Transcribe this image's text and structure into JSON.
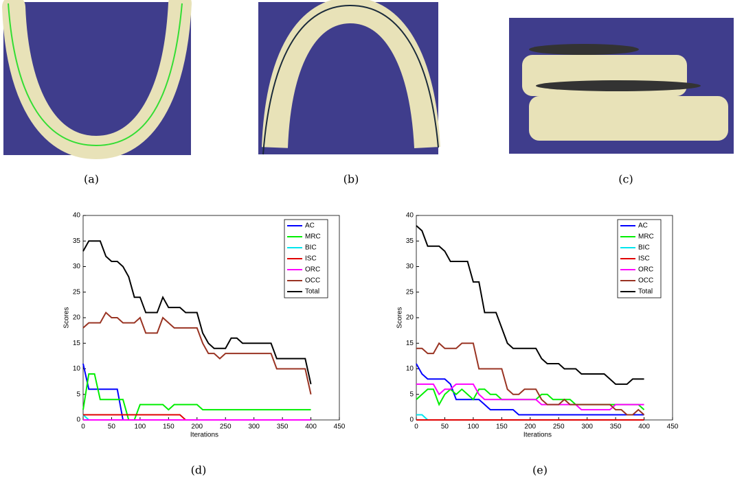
{
  "figure": {
    "captions": [
      "(a)",
      "(b)",
      "(c)",
      "(d)",
      "(e)"
    ]
  },
  "chart_data": [
    {
      "type": "line",
      "xlabel": "Iterations",
      "ylabel": "Scores",
      "xlim": [
        0,
        450
      ],
      "xticks": [
        0,
        50,
        100,
        150,
        200,
        250,
        300,
        350,
        400,
        450
      ],
      "ylim": [
        0,
        40
      ],
      "yticks": [
        0,
        5,
        10,
        15,
        20,
        25,
        30,
        35,
        40
      ],
      "legend": "upper right",
      "x": [
        0,
        10,
        20,
        30,
        40,
        50,
        60,
        70,
        80,
        90,
        100,
        110,
        120,
        130,
        140,
        150,
        160,
        170,
        180,
        190,
        200,
        210,
        220,
        230,
        240,
        250,
        260,
        270,
        280,
        290,
        300,
        310,
        320,
        330,
        340,
        350,
        360,
        370,
        380,
        390,
        400
      ],
      "series": [
        {
          "name": "AC",
          "color": "#0000ff",
          "values": [
            11,
            6,
            6,
            6,
            6,
            6,
            6,
            0,
            0,
            0,
            0,
            0,
            0,
            0,
            0,
            0,
            0,
            0,
            0,
            0,
            0,
            0,
            0,
            0,
            0,
            0,
            0,
            0,
            0,
            0,
            0,
            0,
            0,
            0,
            0,
            0,
            0,
            0,
            0,
            0,
            0
          ]
        },
        {
          "name": "MRC",
          "color": "#00ee00",
          "values": [
            2,
            9,
            9,
            4,
            4,
            4,
            4,
            4,
            0,
            0,
            3,
            3,
            3,
            3,
            3,
            2,
            3,
            3,
            3,
            3,
            3,
            2,
            2,
            2,
            2,
            2,
            2,
            2,
            2,
            2,
            2,
            2,
            2,
            2,
            2,
            2,
            2,
            2,
            2,
            2,
            2
          ]
        },
        {
          "name": "BIC",
          "color": "#00e5ee",
          "values": [
            1,
            0,
            0,
            0,
            0,
            0,
            0,
            0,
            0,
            0,
            0,
            0,
            0,
            0,
            0,
            0,
            0,
            0,
            0,
            0,
            0,
            0,
            0,
            0,
            0,
            0,
            0,
            0,
            0,
            0,
            0,
            0,
            0,
            0,
            0,
            0,
            0,
            0,
            0,
            0,
            0
          ]
        },
        {
          "name": "ISC",
          "color": "#e00000",
          "values": [
            1,
            1,
            1,
            1,
            1,
            1,
            1,
            1,
            1,
            1,
            1,
            1,
            1,
            1,
            1,
            1,
            1,
            1,
            0,
            0,
            0,
            0,
            0,
            0,
            0,
            0,
            0,
            0,
            0,
            0,
            0,
            0,
            0,
            0,
            0,
            0,
            0,
            0,
            0,
            0,
            0
          ]
        },
        {
          "name": "ORC",
          "color": "#ff00ff",
          "values": [
            0,
            0,
            0,
            0,
            0,
            0,
            0,
            0,
            0,
            0,
            0,
            0,
            0,
            0,
            0,
            0,
            0,
            0,
            0,
            0,
            0,
            0,
            0,
            0,
            0,
            0,
            0,
            0,
            0,
            0,
            0,
            0,
            0,
            0,
            0,
            0,
            0,
            0,
            0,
            0,
            0
          ]
        },
        {
          "name": "OCC",
          "color": "#993322",
          "values": [
            18,
            19,
            19,
            19,
            21,
            20,
            20,
            19,
            19,
            19,
            20,
            17,
            17,
            17,
            20,
            19,
            18,
            18,
            18,
            18,
            18,
            15,
            13,
            13,
            12,
            13,
            13,
            13,
            13,
            13,
            13,
            13,
            13,
            13,
            10,
            10,
            10,
            10,
            10,
            10,
            5
          ]
        },
        {
          "name": "Total",
          "color": "#000000",
          "values": [
            33,
            35,
            35,
            35,
            32,
            31,
            31,
            30,
            28,
            24,
            24,
            21,
            21,
            21,
            24,
            22,
            22,
            22,
            21,
            21,
            21,
            17,
            15,
            14,
            14,
            14,
            16,
            16,
            15,
            15,
            15,
            15,
            15,
            15,
            12,
            12,
            12,
            12,
            12,
            12,
            7
          ]
        }
      ]
    },
    {
      "type": "line",
      "xlabel": "Iterations",
      "ylabel": "Scores",
      "xlim": [
        0,
        450
      ],
      "xticks": [
        0,
        50,
        100,
        150,
        200,
        250,
        300,
        350,
        400,
        450
      ],
      "ylim": [
        0,
        40
      ],
      "yticks": [
        0,
        5,
        10,
        15,
        20,
        25,
        30,
        35,
        40
      ],
      "legend": "upper right",
      "x": [
        0,
        10,
        20,
        30,
        40,
        50,
        60,
        70,
        80,
        90,
        100,
        110,
        120,
        130,
        140,
        150,
        160,
        170,
        180,
        190,
        200,
        210,
        220,
        230,
        240,
        250,
        260,
        270,
        280,
        290,
        300,
        310,
        320,
        330,
        340,
        350,
        360,
        370,
        380,
        390,
        400
      ],
      "series": [
        {
          "name": "AC",
          "color": "#0000ff",
          "values": [
            11,
            9,
            8,
            8,
            8,
            8,
            7,
            4,
            4,
            4,
            4,
            4,
            3,
            2,
            2,
            2,
            2,
            2,
            1,
            1,
            1,
            1,
            1,
            1,
            1,
            1,
            1,
            1,
            1,
            1,
            1,
            1,
            1,
            1,
            1,
            1,
            1,
            1,
            1,
            1,
            1
          ]
        },
        {
          "name": "MRC",
          "color": "#00ee00",
          "values": [
            4,
            5,
            6,
            6,
            3,
            5,
            6,
            5,
            6,
            5,
            4,
            6,
            6,
            5,
            5,
            4,
            4,
            4,
            4,
            4,
            4,
            4,
            5,
            5,
            4,
            4,
            4,
            4,
            3,
            3,
            3,
            3,
            3,
            3,
            3,
            3,
            3,
            3,
            3,
            3,
            2
          ]
        },
        {
          "name": "BIC",
          "color": "#00e5ee",
          "values": [
            1,
            1,
            0,
            0,
            0,
            0,
            0,
            0,
            0,
            0,
            0,
            0,
            0,
            0,
            0,
            0,
            0,
            0,
            0,
            0,
            0,
            0,
            0,
            0,
            0,
            0,
            0,
            0,
            0,
            0,
            0,
            0,
            0,
            0,
            0,
            0,
            0,
            0,
            0,
            0,
            0
          ]
        },
        {
          "name": "ISC",
          "color": "#e00000",
          "values": [
            0,
            0,
            0,
            0,
            0,
            0,
            0,
            0,
            0,
            0,
            0,
            0,
            0,
            0,
            0,
            0,
            0,
            0,
            0,
            0,
            0,
            0,
            0,
            0,
            0,
            0,
            0,
            0,
            0,
            0,
            0,
            0,
            0,
            0,
            0,
            0,
            0,
            0,
            0,
            0,
            0
          ]
        },
        {
          "name": "ORC",
          "color": "#ff00ff",
          "values": [
            7,
            7,
            7,
            7,
            5,
            6,
            6,
            7,
            7,
            7,
            7,
            5,
            4,
            4,
            4,
            4,
            4,
            4,
            4,
            4,
            4,
            4,
            3,
            3,
            3,
            3,
            3,
            3,
            3,
            2,
            2,
            2,
            2,
            2,
            2,
            3,
            3,
            3,
            3,
            3,
            3
          ]
        },
        {
          "name": "OCC",
          "color": "#993322",
          "values": [
            14,
            14,
            13,
            13,
            15,
            14,
            14,
            14,
            15,
            15,
            15,
            10,
            10,
            10,
            10,
            10,
            6,
            5,
            5,
            6,
            6,
            6,
            4,
            3,
            3,
            3,
            4,
            3,
            3,
            3,
            3,
            3,
            3,
            3,
            3,
            2,
            2,
            1,
            1,
            2,
            1
          ]
        },
        {
          "name": "Total",
          "color": "#000000",
          "values": [
            38,
            37,
            34,
            34,
            34,
            33,
            31,
            31,
            31,
            31,
            27,
            27,
            21,
            21,
            21,
            18,
            15,
            14,
            14,
            14,
            14,
            14,
            12,
            11,
            11,
            11,
            10,
            10,
            10,
            9,
            9,
            9,
            9,
            9,
            8,
            7,
            7,
            7,
            8,
            8,
            8
          ]
        }
      ]
    }
  ]
}
